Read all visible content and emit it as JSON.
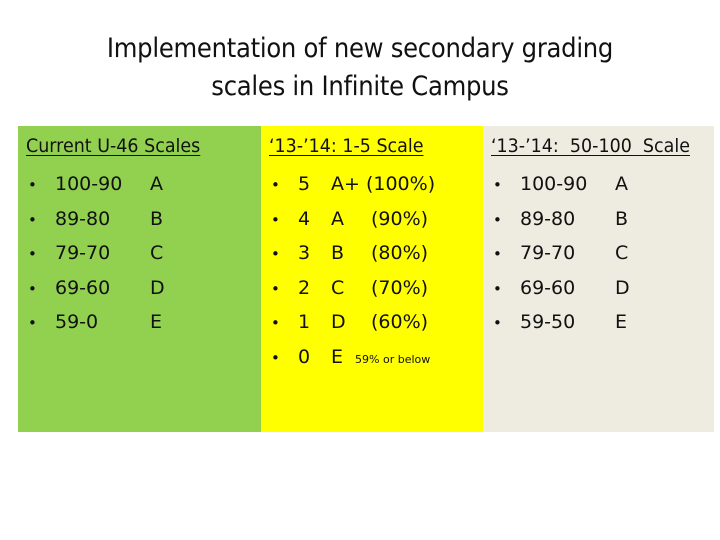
{
  "slide": {
    "title_line1": "Implementation of new secondary grading",
    "title_line2": "scales in Infinite Campus"
  },
  "colors": {
    "panel_current": "#92d050",
    "panel_1_5": "#ffff00",
    "panel_50_100": "#eeece1"
  },
  "panels": {
    "current": {
      "heading": "Current U-46 Scales",
      "rows": [
        {
          "range": "100-90",
          "grade": "A"
        },
        {
          "range": "89-80",
          "grade": "B"
        },
        {
          "range": "79-70",
          "grade": "C"
        },
        {
          "range": "69-60",
          "grade": "D"
        },
        {
          "range": "59-0",
          "grade": "E"
        }
      ]
    },
    "scale_1_5": {
      "heading": "‘13-’14: 1-5 Scale",
      "rows": [
        {
          "score": "5",
          "grade": "A+",
          "percent": "(100%)",
          "note": ""
        },
        {
          "score": "4",
          "grade": "A",
          "percent": "(90%)",
          "note": ""
        },
        {
          "score": "3",
          "grade": "B",
          "percent": "(80%)",
          "note": ""
        },
        {
          "score": "2",
          "grade": "C",
          "percent": "(70%)",
          "note": ""
        },
        {
          "score": "1",
          "grade": "D",
          "percent": "(60%)",
          "note": ""
        },
        {
          "score": "0",
          "grade": "E",
          "percent": "",
          "note": "59% or below"
        }
      ]
    },
    "scale_50_100": {
      "heading": "‘13-’14:  50-100  Scale",
      "rows": [
        {
          "range": "100-90",
          "grade": "A"
        },
        {
          "range": "89-80",
          "grade": "B"
        },
        {
          "range": "79-70",
          "grade": "C"
        },
        {
          "range": "69-60",
          "grade": "D"
        },
        {
          "range": "59-50",
          "grade": "E"
        }
      ]
    }
  }
}
